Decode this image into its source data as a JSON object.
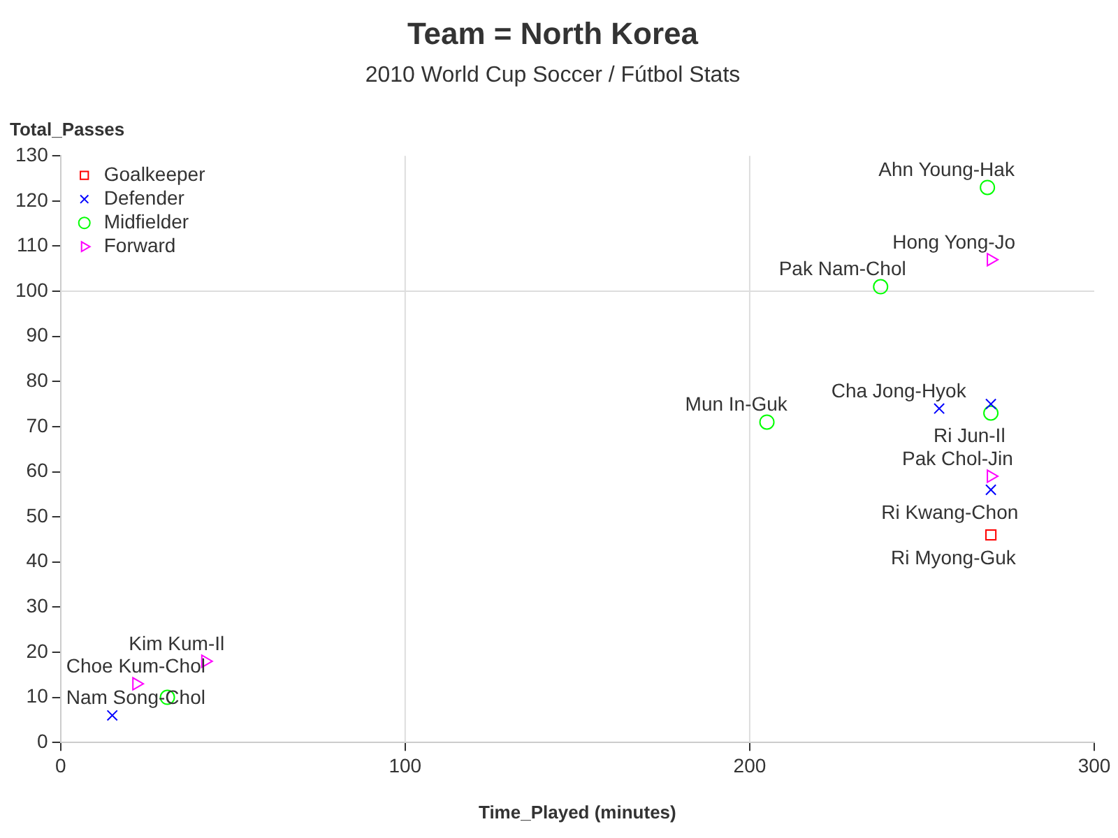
{
  "chart_data": {
    "type": "scatter",
    "title": "Team = North Korea",
    "subtitle": "2010 World Cup Soccer / Fútbol Stats",
    "xlabel": "Time_Played (minutes)",
    "ylabel": "Total_Passes",
    "xlim": [
      0,
      300
    ],
    "xticks": [
      0,
      100,
      200,
      300
    ],
    "ylim": [
      0,
      130
    ],
    "yticks": [
      0,
      10,
      20,
      30,
      40,
      50,
      60,
      70,
      80,
      90,
      100,
      110,
      120,
      130
    ],
    "grid": false,
    "legend": "top left",
    "series": [
      {
        "name": "Goalkeeper",
        "color": "#ff0000",
        "marker": "square",
        "x": [
          270
        ],
        "values": [
          46
        ]
      },
      {
        "name": "Defender",
        "color": "#0000ff",
        "marker": "cross",
        "x": [
          15,
          255,
          270,
          270
        ],
        "values": [
          6,
          74,
          75,
          56
        ]
      },
      {
        "name": "Midfielder",
        "color": "#00ff00",
        "marker": "circle",
        "x": [
          269,
          238,
          205,
          270,
          31
        ],
        "values": [
          123,
          101,
          71,
          73,
          10
        ]
      },
      {
        "name": "Forward",
        "color": "#ff00ff",
        "marker": "triangle",
        "x": [
          270,
          270,
          42,
          22
        ],
        "values": [
          107,
          59,
          18,
          13
        ]
      }
    ],
    "ref_lines": [
      {
        "axis": "x",
        "value": 100,
        "color": "#dddddd"
      },
      {
        "axis": "x",
        "value": 200,
        "color": "#dddddd"
      },
      {
        "axis": "y",
        "value": 100,
        "color": "#dddddd"
      }
    ],
    "annotations": [
      {
        "text": "Ahn Young-Hak",
        "x": 269,
        "y": 123
      },
      {
        "text": "Hong Yong-Jo",
        "x": 270,
        "y": 107
      },
      {
        "text": "Pak Nam-Chol",
        "x": 238,
        "y": 101
      },
      {
        "text": "Mun In-Guk",
        "x": 205,
        "y": 71
      },
      {
        "text": "Cha Jong-Hyok",
        "x": 255,
        "y": 74
      },
      {
        "text": "Ri Jun-Il",
        "x": 270,
        "y": 73
      },
      {
        "text": "Pak Chol-Jin",
        "x": 270,
        "y": 59
      },
      {
        "text": "Ri Kwang-Chon",
        "x": 270,
        "y": 56
      },
      {
        "text": "Ri Myong-Guk",
        "x": 270,
        "y": 46
      },
      {
        "text": "Kim Kum-Il",
        "x": 42,
        "y": 18
      },
      {
        "text": "Choe Kum-Chol",
        "x": 22,
        "y": 13
      },
      {
        "text": "Nam Song-Chol",
        "x": 15,
        "y": 6
      }
    ]
  }
}
